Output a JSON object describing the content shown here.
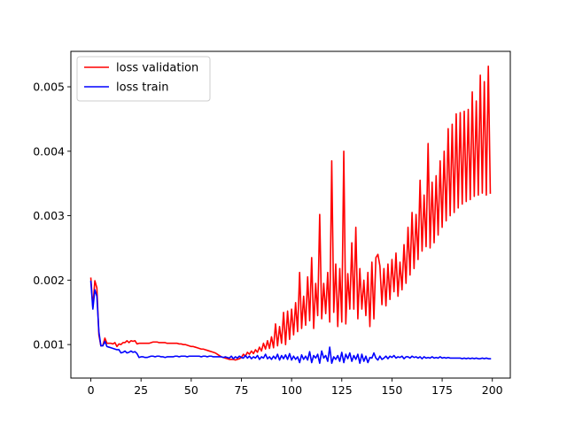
{
  "chart_data": {
    "type": "line",
    "title": "",
    "xlabel": "",
    "ylabel": "",
    "xlim": [
      -9.95,
      208.95
    ],
    "ylim": [
      0.00048,
      0.00555
    ],
    "x_ticks": [
      0,
      25,
      50,
      75,
      100,
      125,
      150,
      175,
      200
    ],
    "x_tick_labels": [
      "0",
      "25",
      "50",
      "75",
      "100",
      "125",
      "150",
      "175",
      "200"
    ],
    "y_ticks": [
      0.001,
      0.002,
      0.003,
      0.004,
      0.005
    ],
    "y_tick_labels": [
      "0.001",
      "0.002",
      "0.003",
      "0.004",
      "0.005"
    ],
    "grid": false,
    "legend_position": "upper-left",
    "series": [
      {
        "name": "loss validation",
        "color": "#ff0000",
        "x": [
          0,
          1,
          2,
          3,
          4,
          5,
          6,
          7,
          8,
          9,
          10,
          11,
          12,
          13,
          14,
          15,
          16,
          17,
          18,
          19,
          20,
          21,
          22,
          23,
          24,
          25,
          26,
          27,
          28,
          29,
          30,
          31,
          32,
          33,
          34,
          35,
          36,
          37,
          38,
          39,
          40,
          41,
          42,
          43,
          44,
          45,
          46,
          47,
          48,
          49,
          50,
          51,
          52,
          53,
          54,
          55,
          56,
          57,
          58,
          59,
          60,
          61,
          62,
          63,
          64,
          65,
          66,
          67,
          68,
          69,
          70,
          71,
          72,
          73,
          74,
          75,
          76,
          77,
          78,
          79,
          80,
          81,
          82,
          83,
          84,
          85,
          86,
          87,
          88,
          89,
          90,
          91,
          92,
          93,
          94,
          95,
          96,
          97,
          98,
          99,
          100,
          101,
          102,
          103,
          104,
          105,
          106,
          107,
          108,
          109,
          110,
          111,
          112,
          113,
          114,
          115,
          116,
          117,
          118,
          119,
          120,
          121,
          122,
          123,
          124,
          125,
          126,
          127,
          128,
          129,
          130,
          131,
          132,
          133,
          134,
          135,
          136,
          137,
          138,
          139,
          140,
          141,
          142,
          143,
          144,
          145,
          146,
          147,
          148,
          149,
          150,
          151,
          152,
          153,
          154,
          155,
          156,
          157,
          158,
          159,
          160,
          161,
          162,
          163,
          164,
          165,
          166,
          167,
          168,
          169,
          170,
          171,
          172,
          173,
          174,
          175,
          176,
          177,
          178,
          179,
          180,
          181,
          182,
          183,
          184,
          185,
          186,
          187,
          188,
          189,
          190,
          191,
          192,
          193,
          194,
          195,
          196,
          197,
          198,
          199
        ],
        "values": [
          0.00203,
          0.00158,
          0.00199,
          0.00188,
          0.00115,
          0.00098,
          0.00099,
          0.0011,
          0.00102,
          0.00102,
          0.00102,
          0.00101,
          0.00103,
          0.00097,
          0.00101,
          0.001,
          0.00103,
          0.00103,
          0.00106,
          0.00103,
          0.00106,
          0.00105,
          0.00106,
          0.00101,
          0.00102,
          0.00102,
          0.00102,
          0.00102,
          0.00102,
          0.00102,
          0.00103,
          0.00104,
          0.00104,
          0.00104,
          0.00103,
          0.00103,
          0.00103,
          0.00103,
          0.00102,
          0.00102,
          0.00102,
          0.00102,
          0.00102,
          0.00102,
          0.00101,
          0.00101,
          0.001,
          0.001,
          0.00099,
          0.00098,
          0.00097,
          0.00097,
          0.00096,
          0.00095,
          0.00094,
          0.00093,
          0.00093,
          0.00092,
          0.00091,
          0.0009,
          0.00089,
          0.00088,
          0.00087,
          0.00085,
          0.00083,
          0.00081,
          0.0008,
          0.00079,
          0.00078,
          0.00077,
          0.00077,
          0.00077,
          0.00076,
          0.00077,
          0.00078,
          0.0008,
          0.00085,
          0.00082,
          0.00088,
          0.00085,
          0.0009,
          0.00086,
          0.00092,
          0.00088,
          0.00096,
          0.0009,
          0.00102,
          0.00093,
          0.00106,
          0.00094,
          0.00112,
          0.00095,
          0.00132,
          0.00098,
          0.00128,
          0.00102,
          0.0015,
          0.001,
          0.00152,
          0.00108,
          0.00155,
          0.00115,
          0.00165,
          0.0012,
          0.00212,
          0.00125,
          0.00175,
          0.0013,
          0.00205,
          0.00137,
          0.00235,
          0.00125,
          0.00195,
          0.00145,
          0.00302,
          0.0014,
          0.00195,
          0.00148,
          0.00212,
          0.00135,
          0.00385,
          0.0015,
          0.00225,
          0.00128,
          0.00218,
          0.00135,
          0.004,
          0.00132,
          0.0021,
          0.00155,
          0.00258,
          0.00155,
          0.00282,
          0.0014,
          0.00218,
          0.00155,
          0.002,
          0.00145,
          0.00212,
          0.00128,
          0.00228,
          0.0014,
          0.00235,
          0.0024,
          0.00222,
          0.00162,
          0.00218,
          0.0016,
          0.00225,
          0.0017,
          0.00232,
          0.00182,
          0.00242,
          0.00175,
          0.00228,
          0.00185,
          0.00255,
          0.00195,
          0.00282,
          0.00208,
          0.00305,
          0.00218,
          0.00302,
          0.00232,
          0.00355,
          0.00245,
          0.00332,
          0.00252,
          0.00412,
          0.0025,
          0.00352,
          0.00258,
          0.00362,
          0.0027,
          0.00385,
          0.00282,
          0.004,
          0.00292,
          0.00435,
          0.003,
          0.00442,
          0.00305,
          0.00458,
          0.00312,
          0.0046,
          0.00318,
          0.00462,
          0.00322,
          0.00465,
          0.00325,
          0.00492,
          0.0033,
          0.00478,
          0.00332,
          0.00518,
          0.00335,
          0.00508,
          0.00332,
          0.00532,
          0.00335
        ]
      },
      {
        "name": "loss train",
        "color": "#0000ff",
        "x": [
          0,
          1,
          2,
          3,
          4,
          5,
          6,
          7,
          8,
          9,
          10,
          11,
          12,
          13,
          14,
          15,
          16,
          17,
          18,
          19,
          20,
          21,
          22,
          23,
          24,
          25,
          26,
          27,
          28,
          29,
          30,
          31,
          32,
          33,
          34,
          35,
          36,
          37,
          38,
          39,
          40,
          41,
          42,
          43,
          44,
          45,
          46,
          47,
          48,
          49,
          50,
          51,
          52,
          53,
          54,
          55,
          56,
          57,
          58,
          59,
          60,
          61,
          62,
          63,
          64,
          65,
          66,
          67,
          68,
          69,
          70,
          71,
          72,
          73,
          74,
          75,
          76,
          77,
          78,
          79,
          80,
          81,
          82,
          83,
          84,
          85,
          86,
          87,
          88,
          89,
          90,
          91,
          92,
          93,
          94,
          95,
          96,
          97,
          98,
          99,
          100,
          101,
          102,
          103,
          104,
          105,
          106,
          107,
          108,
          109,
          110,
          111,
          112,
          113,
          114,
          115,
          116,
          117,
          118,
          119,
          120,
          121,
          122,
          123,
          124,
          125,
          126,
          127,
          128,
          129,
          130,
          131,
          132,
          133,
          134,
          135,
          136,
          137,
          138,
          139,
          140,
          141,
          142,
          143,
          144,
          145,
          146,
          147,
          148,
          149,
          150,
          151,
          152,
          153,
          154,
          155,
          156,
          157,
          158,
          159,
          160,
          161,
          162,
          163,
          164,
          165,
          166,
          167,
          168,
          169,
          170,
          171,
          172,
          173,
          174,
          175,
          176,
          177,
          178,
          179,
          180,
          181,
          182,
          183,
          184,
          185,
          186,
          187,
          188,
          189,
          190,
          191,
          192,
          193,
          194,
          195,
          196,
          197,
          198,
          199
        ],
        "values": [
          0.00198,
          0.00155,
          0.00185,
          0.00175,
          0.0012,
          0.00098,
          0.00098,
          0.00105,
          0.00097,
          0.00096,
          0.00095,
          0.00094,
          0.00093,
          0.00092,
          0.00092,
          0.00087,
          0.00088,
          0.0009,
          0.00087,
          0.00088,
          0.0009,
          0.00088,
          0.00089,
          0.00086,
          0.0008,
          0.00081,
          0.00081,
          0.0008,
          0.0008,
          0.00081,
          0.00082,
          0.00082,
          0.00081,
          0.00082,
          0.00082,
          0.00081,
          0.00081,
          0.0008,
          0.00081,
          0.00081,
          0.00081,
          0.00081,
          0.00082,
          0.00082,
          0.00081,
          0.00082,
          0.00082,
          0.00082,
          0.00081,
          0.00082,
          0.00082,
          0.00082,
          0.00082,
          0.00082,
          0.00082,
          0.00081,
          0.00082,
          0.00082,
          0.00081,
          0.00082,
          0.00082,
          0.00081,
          0.00081,
          0.00081,
          0.00081,
          0.00081,
          0.0008,
          0.00081,
          0.0008,
          0.00079,
          0.00082,
          0.00078,
          0.00081,
          0.00079,
          0.00082,
          0.0008,
          0.00079,
          0.00083,
          0.00079,
          0.00082,
          0.00078,
          0.00081,
          0.00079,
          0.00083,
          0.00077,
          0.00081,
          0.00079,
          0.00085,
          0.00078,
          0.00081,
          0.00077,
          0.00082,
          0.00078,
          0.00085,
          0.00076,
          0.00083,
          0.00078,
          0.00084,
          0.00077,
          0.00086,
          0.00076,
          0.00082,
          0.00077,
          0.00081,
          0.00072,
          0.00084,
          0.00077,
          0.00082,
          0.00076,
          0.00089,
          0.00072,
          0.00083,
          0.00079,
          0.00085,
          0.00071,
          0.0009,
          0.00079,
          0.00083,
          0.00074,
          0.00096,
          0.00071,
          0.00081,
          0.00077,
          0.00083,
          0.00074,
          0.00088,
          0.00072,
          0.00085,
          0.00078,
          0.00087,
          0.00074,
          0.00083,
          0.00077,
          0.00085,
          0.00071,
          0.00085,
          0.00074,
          0.00082,
          0.00072,
          0.0008,
          0.00079,
          0.00087,
          0.00079,
          0.00076,
          0.00082,
          0.00077,
          0.00079,
          0.00082,
          0.00078,
          0.00082,
          0.0008,
          0.00083,
          0.00079,
          0.00081,
          0.0008,
          0.00082,
          0.00078,
          0.00081,
          0.00081,
          0.00079,
          0.00082,
          0.0008,
          0.00081,
          0.00079,
          0.00081,
          0.00078,
          0.00081,
          0.00079,
          0.0008,
          0.00079,
          0.00081,
          0.00079,
          0.0008,
          0.00079,
          0.00081,
          0.00079,
          0.0008,
          0.00079,
          0.0008,
          0.00079,
          0.00079,
          0.00079,
          0.00079,
          0.00079,
          0.00079,
          0.00078,
          0.00079,
          0.00078,
          0.00079,
          0.00078,
          0.00079,
          0.00078,
          0.00079,
          0.00078,
          0.00078,
          0.00079,
          0.00078,
          0.00079,
          0.00078,
          0.00078
        ]
      }
    ]
  }
}
